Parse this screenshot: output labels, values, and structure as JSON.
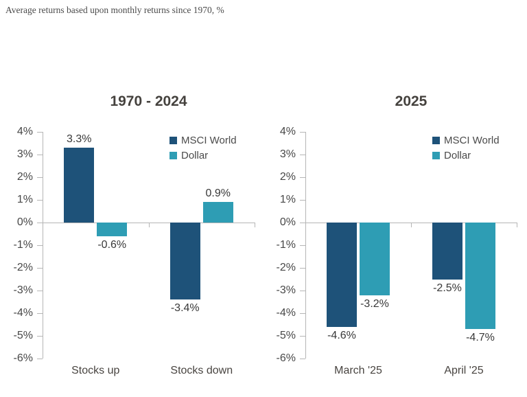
{
  "page_title": "Average returns based upon monthly returns since 1970, %",
  "colors": {
    "msci_world": "#1e5279",
    "dollar": "#2e9db4",
    "axis": "#b5b5b5",
    "title_text": "#45423e",
    "tick_text": "#474747",
    "value_text": "#383838",
    "category_text": "#484440",
    "legend_text": "#4a4a4a"
  },
  "legend": {
    "items": [
      {
        "label": "MSCI World",
        "color": "#1e5279"
      },
      {
        "label": "Dollar",
        "color": "#2e9db4"
      }
    ]
  },
  "chart_data": [
    {
      "type": "bar",
      "title": "1970 - 2024",
      "categories": [
        "Stocks up",
        "Stocks down"
      ],
      "series": [
        {
          "name": "MSCI World",
          "color": "#1e5279",
          "values": [
            3.3,
            -3.4
          ],
          "value_labels": [
            "3.3%",
            "-3.4%"
          ]
        },
        {
          "name": "Dollar",
          "color": "#2e9db4",
          "values": [
            -0.6,
            0.9
          ],
          "value_labels": [
            "-0.6%",
            "0.9%"
          ]
        }
      ],
      "xlabel": "",
      "ylabel": "",
      "ylim": [
        -6,
        4
      ],
      "ytick_step": 1,
      "yticks": [
        "4%",
        "3%",
        "2%",
        "1%",
        "0%",
        "-1%",
        "-2%",
        "-3%",
        "-4%",
        "-5%",
        "-6%"
      ],
      "legend_position": "top-right",
      "grid": false
    },
    {
      "type": "bar",
      "title": "2025",
      "categories": [
        "March '25",
        "April '25"
      ],
      "series": [
        {
          "name": "MSCI World",
          "color": "#1e5279",
          "values": [
            -4.6,
            -2.5
          ],
          "value_labels": [
            "-4.6%",
            "-2.5%"
          ]
        },
        {
          "name": "Dollar",
          "color": "#2e9db4",
          "values": [
            -3.2,
            -4.7
          ],
          "value_labels": [
            "-3.2%",
            "-4.7%"
          ]
        }
      ],
      "xlabel": "",
      "ylabel": "",
      "ylim": [
        -6,
        4
      ],
      "ytick_step": 1,
      "yticks": [
        "4%",
        "3%",
        "2%",
        "1%",
        "0%",
        "-1%",
        "-2%",
        "-3%",
        "-4%",
        "-5%",
        "-6%"
      ],
      "legend_position": "top-right",
      "grid": false
    }
  ]
}
